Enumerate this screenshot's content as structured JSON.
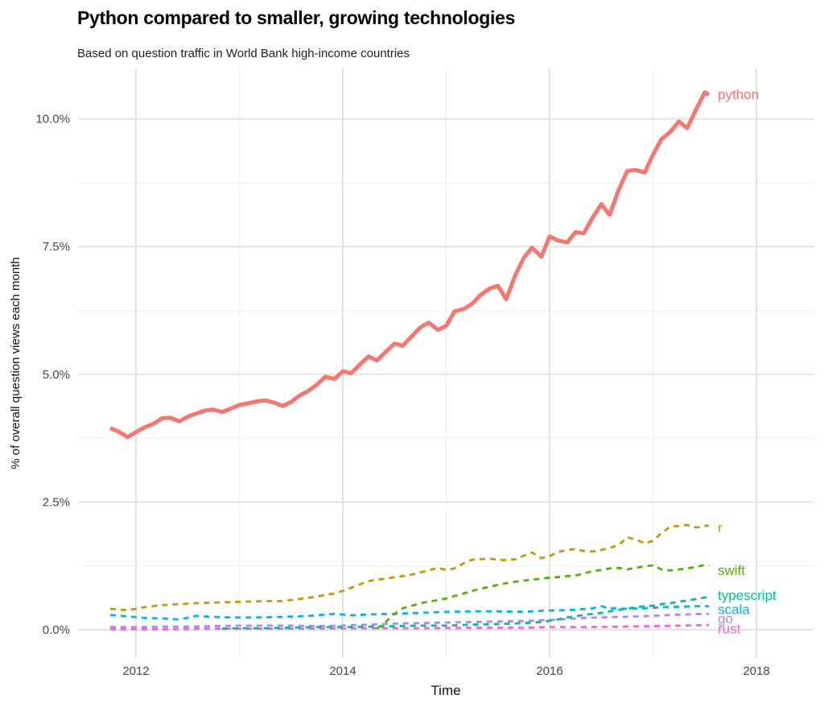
{
  "chart_data": {
    "type": "line",
    "title": "Python compared to smaller, growing technologies",
    "subtitle": "Based on question traffic in World Bank high-income countries",
    "xlabel": "Time",
    "ylabel": "% of overall question views each month",
    "x_ticks": [
      2012,
      2014,
      2016,
      2018
    ],
    "x_tick_labels": [
      "2012",
      "2014",
      "2016",
      "2018"
    ],
    "x_minor_ticks": [
      2013,
      2015,
      2017
    ],
    "y_ticks": [
      0,
      2.5,
      5,
      7.5,
      10
    ],
    "y_tick_labels": [
      "0.0%",
      "2.5%",
      "5.0%",
      "7.5%",
      "10.0%"
    ],
    "y_minor_ticks": [
      1.25,
      3.75,
      6.25,
      8.75
    ],
    "xlim": [
      2011.44,
      2018.56
    ],
    "ylim": [
      -0.55,
      11.0
    ],
    "grid": true,
    "legend_position": "direct-labels-right",
    "colors": {
      "grid_major": "#e3e3e3",
      "grid_minor": "#f0f0f0",
      "tick_text": "#474747",
      "axis_title_text": "#111111"
    },
    "series": [
      {
        "name": "python",
        "color": "#F8766D",
        "linestyle": "solid",
        "label_y": 10.48,
        "points": [
          [
            2011.75,
            3.95
          ],
          [
            2011.83,
            3.88
          ],
          [
            2011.92,
            3.77
          ],
          [
            2012.0,
            3.87
          ],
          [
            2012.08,
            3.96
          ],
          [
            2012.17,
            4.03
          ],
          [
            2012.25,
            4.14
          ],
          [
            2012.33,
            4.15
          ],
          [
            2012.42,
            4.08
          ],
          [
            2012.5,
            4.17
          ],
          [
            2012.58,
            4.23
          ],
          [
            2012.67,
            4.29
          ],
          [
            2012.75,
            4.31
          ],
          [
            2012.83,
            4.26
          ],
          [
            2012.92,
            4.33
          ],
          [
            2013.0,
            4.4
          ],
          [
            2013.08,
            4.43
          ],
          [
            2013.17,
            4.47
          ],
          [
            2013.25,
            4.49
          ],
          [
            2013.33,
            4.45
          ],
          [
            2013.42,
            4.38
          ],
          [
            2013.5,
            4.46
          ],
          [
            2013.58,
            4.58
          ],
          [
            2013.67,
            4.68
          ],
          [
            2013.75,
            4.8
          ],
          [
            2013.83,
            4.95
          ],
          [
            2013.92,
            4.91
          ],
          [
            2014.0,
            5.06
          ],
          [
            2014.08,
            5.02
          ],
          [
            2014.17,
            5.2
          ],
          [
            2014.25,
            5.35
          ],
          [
            2014.33,
            5.27
          ],
          [
            2014.42,
            5.45
          ],
          [
            2014.5,
            5.6
          ],
          [
            2014.58,
            5.56
          ],
          [
            2014.67,
            5.75
          ],
          [
            2014.75,
            5.92
          ],
          [
            2014.83,
            6.01
          ],
          [
            2014.92,
            5.87
          ],
          [
            2015.0,
            5.95
          ],
          [
            2015.08,
            6.23
          ],
          [
            2015.17,
            6.28
          ],
          [
            2015.25,
            6.38
          ],
          [
            2015.33,
            6.55
          ],
          [
            2015.42,
            6.68
          ],
          [
            2015.5,
            6.73
          ],
          [
            2015.58,
            6.47
          ],
          [
            2015.67,
            6.95
          ],
          [
            2015.75,
            7.28
          ],
          [
            2015.83,
            7.48
          ],
          [
            2015.92,
            7.3
          ],
          [
            2016.0,
            7.7
          ],
          [
            2016.08,
            7.62
          ],
          [
            2016.17,
            7.58
          ],
          [
            2016.25,
            7.78
          ],
          [
            2016.33,
            7.76
          ],
          [
            2016.42,
            8.08
          ],
          [
            2016.5,
            8.33
          ],
          [
            2016.58,
            8.12
          ],
          [
            2016.67,
            8.62
          ],
          [
            2016.75,
            8.98
          ],
          [
            2016.83,
            9.0
          ],
          [
            2016.92,
            8.95
          ],
          [
            2017.0,
            9.3
          ],
          [
            2017.08,
            9.6
          ],
          [
            2017.17,
            9.75
          ],
          [
            2017.25,
            9.95
          ],
          [
            2017.33,
            9.82
          ],
          [
            2017.42,
            10.2
          ],
          [
            2017.5,
            10.52
          ],
          [
            2017.54,
            10.47
          ]
        ]
      },
      {
        "name": "r",
        "color": "#C49A00",
        "linestyle": "dashed",
        "label_y": 2.0,
        "points": [
          [
            2011.75,
            0.41
          ],
          [
            2011.92,
            0.38
          ],
          [
            2012.08,
            0.44
          ],
          [
            2012.25,
            0.48
          ],
          [
            2012.42,
            0.5
          ],
          [
            2012.58,
            0.52
          ],
          [
            2012.75,
            0.53
          ],
          [
            2012.92,
            0.54
          ],
          [
            2013.08,
            0.55
          ],
          [
            2013.25,
            0.56
          ],
          [
            2013.42,
            0.56
          ],
          [
            2013.58,
            0.6
          ],
          [
            2013.75,
            0.65
          ],
          [
            2013.83,
            0.68
          ],
          [
            2013.92,
            0.71
          ],
          [
            2014.0,
            0.76
          ],
          [
            2014.08,
            0.82
          ],
          [
            2014.17,
            0.89
          ],
          [
            2014.25,
            0.95
          ],
          [
            2014.33,
            0.98
          ],
          [
            2014.42,
            1.0
          ],
          [
            2014.5,
            1.03
          ],
          [
            2014.58,
            1.05
          ],
          [
            2014.67,
            1.08
          ],
          [
            2014.75,
            1.12
          ],
          [
            2014.83,
            1.16
          ],
          [
            2014.92,
            1.21
          ],
          [
            2015.0,
            1.17
          ],
          [
            2015.08,
            1.2
          ],
          [
            2015.17,
            1.3
          ],
          [
            2015.25,
            1.37
          ],
          [
            2015.33,
            1.38
          ],
          [
            2015.42,
            1.39
          ],
          [
            2015.5,
            1.37
          ],
          [
            2015.58,
            1.36
          ],
          [
            2015.67,
            1.38
          ],
          [
            2015.75,
            1.45
          ],
          [
            2015.83,
            1.51
          ],
          [
            2015.92,
            1.4
          ],
          [
            2016.0,
            1.44
          ],
          [
            2016.08,
            1.52
          ],
          [
            2016.17,
            1.56
          ],
          [
            2016.25,
            1.58
          ],
          [
            2016.33,
            1.54
          ],
          [
            2016.42,
            1.53
          ],
          [
            2016.5,
            1.56
          ],
          [
            2016.58,
            1.6
          ],
          [
            2016.67,
            1.66
          ],
          [
            2016.75,
            1.81
          ],
          [
            2016.83,
            1.77
          ],
          [
            2016.92,
            1.69
          ],
          [
            2017.0,
            1.74
          ],
          [
            2017.08,
            1.89
          ],
          [
            2017.17,
            2.02
          ],
          [
            2017.25,
            2.03
          ],
          [
            2017.33,
            2.05
          ],
          [
            2017.42,
            2.0
          ],
          [
            2017.5,
            2.03
          ],
          [
            2017.54,
            2.04
          ]
        ]
      },
      {
        "name": "swift",
        "color": "#53B400",
        "linestyle": "dashed",
        "label_y": 1.17,
        "points": [
          [
            2014.33,
            0.02
          ],
          [
            2014.42,
            0.16
          ],
          [
            2014.5,
            0.31
          ],
          [
            2014.58,
            0.42
          ],
          [
            2014.67,
            0.47
          ],
          [
            2014.75,
            0.52
          ],
          [
            2014.83,
            0.55
          ],
          [
            2014.92,
            0.58
          ],
          [
            2015.0,
            0.61
          ],
          [
            2015.08,
            0.66
          ],
          [
            2015.17,
            0.71
          ],
          [
            2015.25,
            0.76
          ],
          [
            2015.33,
            0.8
          ],
          [
            2015.42,
            0.84
          ],
          [
            2015.5,
            0.88
          ],
          [
            2015.58,
            0.91
          ],
          [
            2015.67,
            0.94
          ],
          [
            2015.75,
            0.96
          ],
          [
            2015.83,
            0.98
          ],
          [
            2015.92,
            1.0
          ],
          [
            2016.0,
            1.02
          ],
          [
            2016.08,
            1.03
          ],
          [
            2016.17,
            1.05
          ],
          [
            2016.25,
            1.06
          ],
          [
            2016.33,
            1.1
          ],
          [
            2016.42,
            1.15
          ],
          [
            2016.5,
            1.17
          ],
          [
            2016.58,
            1.2
          ],
          [
            2016.67,
            1.21
          ],
          [
            2016.75,
            1.18
          ],
          [
            2016.83,
            1.21
          ],
          [
            2016.92,
            1.24
          ],
          [
            2017.0,
            1.26
          ],
          [
            2017.08,
            1.18
          ],
          [
            2017.17,
            1.16
          ],
          [
            2017.25,
            1.18
          ],
          [
            2017.33,
            1.2
          ],
          [
            2017.42,
            1.23
          ],
          [
            2017.5,
            1.27
          ],
          [
            2017.54,
            1.25
          ]
        ]
      },
      {
        "name": "typescript",
        "color": "#00C094",
        "linestyle": "dashed",
        "label_y": 0.68,
        "points": [
          [
            2012.83,
            0.02
          ],
          [
            2013.0,
            0.03
          ],
          [
            2013.25,
            0.03
          ],
          [
            2013.5,
            0.04
          ],
          [
            2013.75,
            0.05
          ],
          [
            2014.0,
            0.05
          ],
          [
            2014.25,
            0.06
          ],
          [
            2014.5,
            0.07
          ],
          [
            2014.75,
            0.08
          ],
          [
            2015.0,
            0.08
          ],
          [
            2015.25,
            0.1
          ],
          [
            2015.5,
            0.11
          ],
          [
            2015.75,
            0.13
          ],
          [
            2015.92,
            0.15
          ],
          [
            2016.08,
            0.2
          ],
          [
            2016.17,
            0.24
          ],
          [
            2016.25,
            0.26
          ],
          [
            2016.33,
            0.29
          ],
          [
            2016.42,
            0.31
          ],
          [
            2016.5,
            0.33
          ],
          [
            2016.58,
            0.36
          ],
          [
            2016.67,
            0.39
          ],
          [
            2016.75,
            0.41
          ],
          [
            2016.83,
            0.44
          ],
          [
            2016.92,
            0.46
          ],
          [
            2017.0,
            0.47
          ],
          [
            2017.08,
            0.5
          ],
          [
            2017.17,
            0.52
          ],
          [
            2017.25,
            0.55
          ],
          [
            2017.33,
            0.57
          ],
          [
            2017.42,
            0.6
          ],
          [
            2017.5,
            0.63
          ],
          [
            2017.54,
            0.65
          ]
        ]
      },
      {
        "name": "scala",
        "color": "#00B6EB",
        "linestyle": "dashed",
        "label_y": 0.4,
        "points": [
          [
            2011.75,
            0.29
          ],
          [
            2011.92,
            0.26
          ],
          [
            2012.08,
            0.23
          ],
          [
            2012.25,
            0.22
          ],
          [
            2012.42,
            0.2
          ],
          [
            2012.58,
            0.27
          ],
          [
            2012.75,
            0.25
          ],
          [
            2012.92,
            0.24
          ],
          [
            2013.17,
            0.24
          ],
          [
            2013.42,
            0.25
          ],
          [
            2013.67,
            0.27
          ],
          [
            2013.92,
            0.31
          ],
          [
            2014.08,
            0.28
          ],
          [
            2014.25,
            0.3
          ],
          [
            2014.5,
            0.31
          ],
          [
            2014.75,
            0.33
          ],
          [
            2015.0,
            0.35
          ],
          [
            2015.25,
            0.36
          ],
          [
            2015.5,
            0.36
          ],
          [
            2015.75,
            0.35
          ],
          [
            2015.92,
            0.37
          ],
          [
            2016.08,
            0.38
          ],
          [
            2016.25,
            0.39
          ],
          [
            2016.42,
            0.42
          ],
          [
            2016.5,
            0.46
          ],
          [
            2016.58,
            0.42
          ],
          [
            2016.75,
            0.41
          ],
          [
            2016.92,
            0.42
          ],
          [
            2017.08,
            0.44
          ],
          [
            2017.25,
            0.45
          ],
          [
            2017.42,
            0.46
          ],
          [
            2017.54,
            0.46
          ]
        ]
      },
      {
        "name": "go",
        "color": "#A58AFF",
        "linestyle": "dashed",
        "label_y": 0.22,
        "points": [
          [
            2011.75,
            0.05
          ],
          [
            2012.0,
            0.05
          ],
          [
            2012.25,
            0.06
          ],
          [
            2012.5,
            0.06
          ],
          [
            2012.75,
            0.07
          ],
          [
            2013.0,
            0.08
          ],
          [
            2013.25,
            0.08
          ],
          [
            2013.5,
            0.08
          ],
          [
            2013.75,
            0.07
          ],
          [
            2014.0,
            0.08
          ],
          [
            2014.25,
            0.1
          ],
          [
            2014.5,
            0.12
          ],
          [
            2014.75,
            0.13
          ],
          [
            2015.0,
            0.14
          ],
          [
            2015.25,
            0.15
          ],
          [
            2015.5,
            0.16
          ],
          [
            2015.75,
            0.17
          ],
          [
            2016.0,
            0.19
          ],
          [
            2016.17,
            0.21
          ],
          [
            2016.33,
            0.23
          ],
          [
            2016.5,
            0.24
          ],
          [
            2016.67,
            0.25
          ],
          [
            2016.83,
            0.26
          ],
          [
            2017.0,
            0.27
          ],
          [
            2017.17,
            0.29
          ],
          [
            2017.33,
            0.3
          ],
          [
            2017.5,
            0.31
          ],
          [
            2017.54,
            0.31
          ]
        ]
      },
      {
        "name": "rust",
        "color": "#FB61D7",
        "linestyle": "dashed",
        "label_y": 0.02,
        "points": [
          [
            2011.75,
            0.01
          ],
          [
            2012.25,
            0.01
          ],
          [
            2012.75,
            0.02
          ],
          [
            2013.25,
            0.02
          ],
          [
            2013.75,
            0.02
          ],
          [
            2014.25,
            0.03
          ],
          [
            2014.75,
            0.03
          ],
          [
            2015.25,
            0.04
          ],
          [
            2015.75,
            0.04
          ],
          [
            2016.0,
            0.05
          ],
          [
            2016.33,
            0.05
          ],
          [
            2016.67,
            0.06
          ],
          [
            2017.0,
            0.07
          ],
          [
            2017.25,
            0.08
          ],
          [
            2017.5,
            0.09
          ],
          [
            2017.54,
            0.09
          ]
        ]
      }
    ]
  }
}
